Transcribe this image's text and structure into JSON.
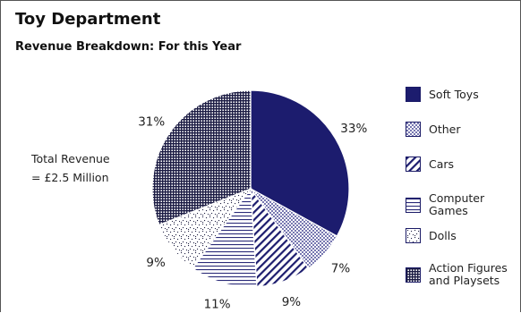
{
  "header": {
    "title": "Toy Department",
    "subtitle": "Revenue Breakdown: For this Year"
  },
  "annotation": {
    "line1": "Total Revenue",
    "line2": "= £2.5 Million"
  },
  "colors": {
    "navy": "#1c1c6e",
    "text": "#222222",
    "background": "#ffffff"
  },
  "chart_data": {
    "type": "pie",
    "title": "Toy Department",
    "subtitle": "Revenue Breakdown: For this Year",
    "legend_position": "right",
    "slices": [
      {
        "label_lines": [
          "Soft Toys"
        ],
        "value": 33,
        "display": "33%",
        "pattern": "solid-navy"
      },
      {
        "label_lines": [
          "Other"
        ],
        "value": 7,
        "display": "7%",
        "pattern": "checker"
      },
      {
        "label_lines": [
          "Cars"
        ],
        "value": 9,
        "display": "9%",
        "pattern": "diagonal-dots"
      },
      {
        "label_lines": [
          "Computer",
          "Games"
        ],
        "value": 11,
        "display": "11%",
        "pattern": "horizontal-lines"
      },
      {
        "label_lines": [
          "Dolls"
        ],
        "value": 9,
        "display": "9%",
        "pattern": "sparse-dots"
      },
      {
        "label_lines": [
          "Action Figures",
          "and Playsets"
        ],
        "value": 31,
        "display": "31%",
        "pattern": "dense-grid"
      }
    ]
  }
}
